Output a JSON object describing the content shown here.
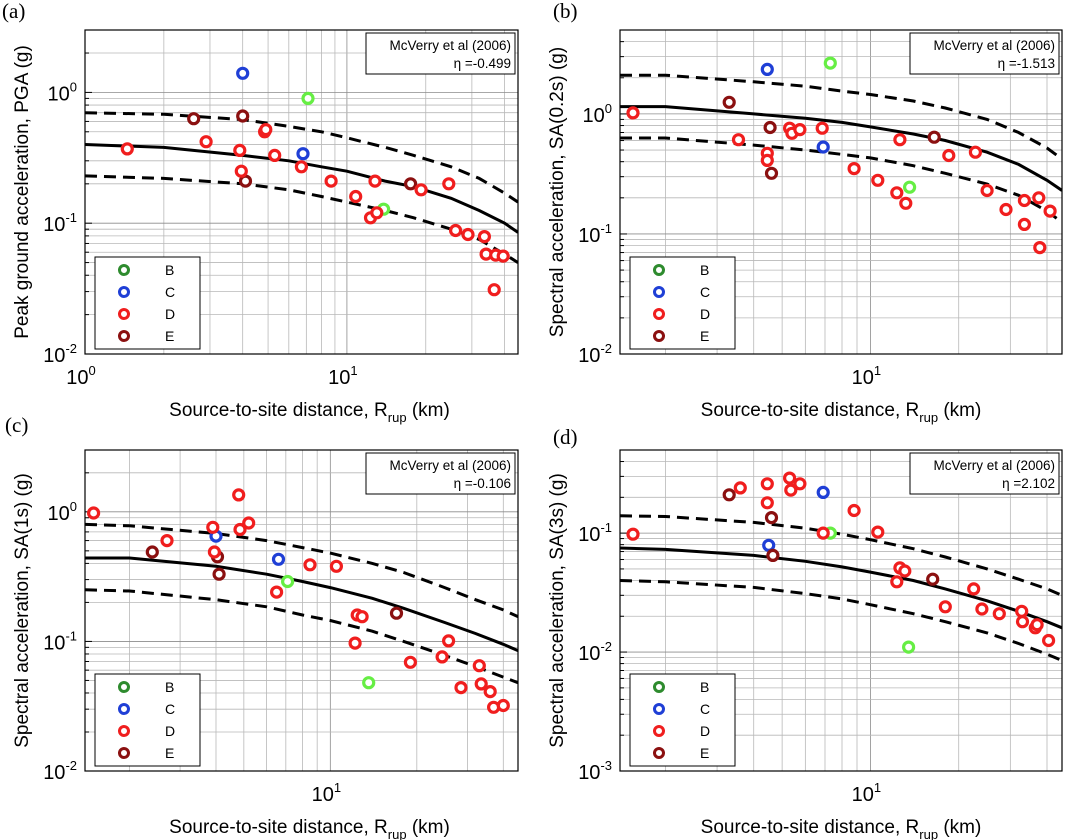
{
  "page_title": "",
  "legend_categories": [
    {
      "label": "B",
      "color": "#2e8b2e"
    },
    {
      "label": "C",
      "color": "#1f3fd6"
    },
    {
      "label": "D",
      "color": "#f01e1e"
    },
    {
      "label": "E",
      "color": "#8b1010"
    }
  ],
  "colors": {
    "light_green": "#66ee44",
    "median_line": "#000000",
    "bounds_line": "#000000"
  },
  "chart_data": [
    {
      "type": "scatter",
      "panel_label": "(a)",
      "annotation_model": "McVerry et al (2006)",
      "annotation_eta": "η =-0.499",
      "xlabel_main": "Source-to-site distance, R",
      "xlabel_sub": "rup",
      "xlabel_unit": " (km)",
      "ylabel": "Peak ground acceleration, PGA (g)",
      "xscale": "log",
      "yscale": "log",
      "xlim": [
        1,
        45
      ],
      "ylim": [
        0.01,
        3
      ],
      "xtick_labels": [
        {
          "v": 1,
          "base": "10",
          "exp": "0"
        },
        {
          "v": 10,
          "base": "10",
          "exp": "1"
        }
      ],
      "ytick_labels": [
        {
          "v": 0.01,
          "base": "10",
          "exp": "-2"
        },
        {
          "v": 0.1,
          "base": "10",
          "exp": "-1"
        },
        {
          "v": 1,
          "base": "10",
          "exp": "0"
        }
      ],
      "grid": true,
      "legend_position": "bottom-left",
      "median_curve": {
        "x": [
          1,
          2,
          4,
          6,
          8,
          10,
          14,
          18,
          25,
          32,
          40,
          45
        ],
        "y": [
          0.4,
          0.38,
          0.33,
          0.3,
          0.27,
          0.25,
          0.21,
          0.19,
          0.155,
          0.125,
          0.1,
          0.085
        ]
      },
      "upper_curve": {
        "x": [
          1,
          2,
          4,
          6,
          8,
          10,
          14,
          18,
          25,
          32,
          40,
          45
        ],
        "y": [
          0.7,
          0.68,
          0.62,
          0.55,
          0.5,
          0.45,
          0.38,
          0.33,
          0.27,
          0.22,
          0.17,
          0.145
        ]
      },
      "lower_curve": {
        "x": [
          1,
          2,
          4,
          6,
          8,
          10,
          14,
          18,
          25,
          32,
          40,
          45
        ],
        "y": [
          0.23,
          0.22,
          0.2,
          0.18,
          0.16,
          0.145,
          0.125,
          0.11,
          0.09,
          0.075,
          0.058,
          0.05
        ]
      },
      "points": [
        {
          "x": 4.0,
          "y": 1.4,
          "cls": "C"
        },
        {
          "x": 6.8,
          "y": 0.34,
          "cls": "C"
        },
        {
          "x": 7.1,
          "y": 0.9,
          "cls": "Bl"
        },
        {
          "x": 13.8,
          "y": 0.128,
          "cls": "Bl"
        },
        {
          "x": 2.6,
          "y": 0.63,
          "cls": "E"
        },
        {
          "x": 4.0,
          "y": 0.66,
          "cls": "E"
        },
        {
          "x": 4.1,
          "y": 0.21,
          "cls": "E"
        },
        {
          "x": 17.5,
          "y": 0.2,
          "cls": "E"
        },
        {
          "x": 1.45,
          "y": 0.37,
          "cls": "D"
        },
        {
          "x": 2.9,
          "y": 0.42,
          "cls": "D"
        },
        {
          "x": 3.9,
          "y": 0.36,
          "cls": "D"
        },
        {
          "x": 3.95,
          "y": 0.25,
          "cls": "D"
        },
        {
          "x": 4.85,
          "y": 0.5,
          "cls": "D"
        },
        {
          "x": 4.9,
          "y": 0.52,
          "cls": "D"
        },
        {
          "x": 5.3,
          "y": 0.33,
          "cls": "D"
        },
        {
          "x": 6.7,
          "y": 0.27,
          "cls": "D"
        },
        {
          "x": 8.7,
          "y": 0.21,
          "cls": "D"
        },
        {
          "x": 10.8,
          "y": 0.16,
          "cls": "D"
        },
        {
          "x": 12.3,
          "y": 0.11,
          "cls": "D"
        },
        {
          "x": 12.8,
          "y": 0.21,
          "cls": "D"
        },
        {
          "x": 13.0,
          "y": 0.12,
          "cls": "D"
        },
        {
          "x": 19.2,
          "y": 0.18,
          "cls": "D"
        },
        {
          "x": 24.5,
          "y": 0.2,
          "cls": "D"
        },
        {
          "x": 26.0,
          "y": 0.088,
          "cls": "D"
        },
        {
          "x": 29.0,
          "y": 0.082,
          "cls": "D"
        },
        {
          "x": 33.5,
          "y": 0.079,
          "cls": "D"
        },
        {
          "x": 34.0,
          "y": 0.058,
          "cls": "D"
        },
        {
          "x": 37.0,
          "y": 0.057,
          "cls": "D"
        },
        {
          "x": 39.5,
          "y": 0.056,
          "cls": "D"
        },
        {
          "x": 36.5,
          "y": 0.031,
          "cls": "D"
        }
      ]
    },
    {
      "type": "scatter",
      "panel_label": "(b)",
      "annotation_model": "McVerry et al (2006)",
      "annotation_eta": "η =-1.513",
      "xlabel_main": "Source-to-site distance, R",
      "xlabel_sub": "rup",
      "xlabel_unit": " (km)",
      "ylabel": "Spectral acceleration, SA(0.2s) (g)",
      "xscale": "log",
      "yscale": "log",
      "xlim": [
        1.4,
        45
      ],
      "ylim": [
        0.01,
        5
      ],
      "xtick_labels": [
        {
          "v": 10,
          "base": "10",
          "exp": "1"
        }
      ],
      "ytick_labels": [
        {
          "v": 0.01,
          "base": "10",
          "exp": "-2"
        },
        {
          "v": 0.1,
          "base": "10",
          "exp": "-1"
        },
        {
          "v": 1,
          "base": "10",
          "exp": "0"
        }
      ],
      "grid": true,
      "legend_position": "bottom-left",
      "median_curve": {
        "x": [
          1.4,
          2,
          4,
          6,
          8,
          10,
          14,
          18,
          25,
          32,
          40,
          45
        ],
        "y": [
          1.15,
          1.15,
          1.0,
          0.92,
          0.85,
          0.78,
          0.68,
          0.6,
          0.48,
          0.38,
          0.28,
          0.23
        ]
      },
      "upper_curve": {
        "x": [
          1.4,
          2,
          4,
          6,
          8,
          10,
          14,
          18,
          25,
          32,
          40,
          45
        ],
        "y": [
          2.1,
          2.1,
          1.85,
          1.7,
          1.55,
          1.45,
          1.28,
          1.12,
          0.9,
          0.7,
          0.52,
          0.42
        ]
      },
      "lower_curve": {
        "x": [
          1.4,
          2,
          4,
          6,
          8,
          10,
          14,
          18,
          25,
          32,
          40,
          45
        ],
        "y": [
          0.63,
          0.63,
          0.55,
          0.5,
          0.46,
          0.43,
          0.37,
          0.32,
          0.26,
          0.21,
          0.155,
          0.125
        ]
      },
      "points": [
        {
          "x": 4.45,
          "y": 2.35,
          "cls": "C"
        },
        {
          "x": 6.9,
          "y": 0.53,
          "cls": "C"
        },
        {
          "x": 7.3,
          "y": 2.65,
          "cls": "Bl"
        },
        {
          "x": 13.6,
          "y": 0.245,
          "cls": "Bl"
        },
        {
          "x": 3.3,
          "y": 1.25,
          "cls": "E"
        },
        {
          "x": 4.55,
          "y": 0.77,
          "cls": "E"
        },
        {
          "x": 4.6,
          "y": 0.32,
          "cls": "E"
        },
        {
          "x": 16.5,
          "y": 0.64,
          "cls": "E"
        },
        {
          "x": 1.55,
          "y": 1.02,
          "cls": "D"
        },
        {
          "x": 3.55,
          "y": 0.61,
          "cls": "D"
        },
        {
          "x": 4.45,
          "y": 0.47,
          "cls": "D"
        },
        {
          "x": 4.45,
          "y": 0.41,
          "cls": "D"
        },
        {
          "x": 5.3,
          "y": 0.76,
          "cls": "D"
        },
        {
          "x": 5.4,
          "y": 0.69,
          "cls": "D"
        },
        {
          "x": 5.75,
          "y": 0.74,
          "cls": "D"
        },
        {
          "x": 6.85,
          "y": 0.76,
          "cls": "D"
        },
        {
          "x": 8.8,
          "y": 0.35,
          "cls": "D"
        },
        {
          "x": 10.6,
          "y": 0.28,
          "cls": "D"
        },
        {
          "x": 12.3,
          "y": 0.22,
          "cls": "D"
        },
        {
          "x": 12.6,
          "y": 0.61,
          "cls": "D"
        },
        {
          "x": 13.2,
          "y": 0.18,
          "cls": "D"
        },
        {
          "x": 18.5,
          "y": 0.45,
          "cls": "D"
        },
        {
          "x": 22.8,
          "y": 0.48,
          "cls": "D"
        },
        {
          "x": 25.0,
          "y": 0.23,
          "cls": "D"
        },
        {
          "x": 29.0,
          "y": 0.16,
          "cls": "D"
        },
        {
          "x": 33.5,
          "y": 0.19,
          "cls": "D"
        },
        {
          "x": 33.5,
          "y": 0.12,
          "cls": "D"
        },
        {
          "x": 37.5,
          "y": 0.2,
          "cls": "D"
        },
        {
          "x": 41.0,
          "y": 0.155,
          "cls": "D"
        },
        {
          "x": 37.8,
          "y": 0.077,
          "cls": "D"
        }
      ]
    },
    {
      "type": "scatter",
      "panel_label": "(c)",
      "annotation_model": "McVerry et al (2006)",
      "annotation_eta": "η =-0.106",
      "xlabel_main": "Source-to-site distance, R",
      "xlabel_sub": "rup",
      "xlabel_unit": " (km)",
      "ylabel": "Spectral acceleration, SA(1s) (g)",
      "xscale": "log",
      "yscale": "log",
      "xlim": [
        1.4,
        45
      ],
      "ylim": [
        0.01,
        3
      ],
      "xtick_labels": [
        {
          "v": 10,
          "base": "10",
          "exp": "1"
        }
      ],
      "ytick_labels": [
        {
          "v": 0.01,
          "base": "10",
          "exp": "-2"
        },
        {
          "v": 0.1,
          "base": "10",
          "exp": "-1"
        },
        {
          "v": 1,
          "base": "10",
          "exp": "0"
        }
      ],
      "grid": true,
      "legend_position": "bottom-left",
      "median_curve": {
        "x": [
          1.4,
          2,
          4,
          6,
          8,
          10,
          14,
          18,
          25,
          32,
          40,
          45
        ],
        "y": [
          0.44,
          0.44,
          0.38,
          0.33,
          0.29,
          0.26,
          0.215,
          0.18,
          0.14,
          0.115,
          0.095,
          0.085
        ]
      },
      "upper_curve": {
        "x": [
          1.4,
          2,
          4,
          6,
          8,
          10,
          14,
          18,
          25,
          32,
          40,
          45
        ],
        "y": [
          0.8,
          0.78,
          0.68,
          0.6,
          0.53,
          0.48,
          0.4,
          0.34,
          0.26,
          0.21,
          0.175,
          0.155
        ]
      },
      "lower_curve": {
        "x": [
          1.4,
          2,
          4,
          6,
          8,
          10,
          14,
          18,
          25,
          32,
          40,
          45
        ],
        "y": [
          0.25,
          0.245,
          0.21,
          0.185,
          0.16,
          0.145,
          0.12,
          0.1,
          0.078,
          0.064,
          0.053,
          0.048
        ]
      },
      "points": [
        {
          "x": 4.0,
          "y": 0.65,
          "cls": "C"
        },
        {
          "x": 6.6,
          "y": 0.43,
          "cls": "C"
        },
        {
          "x": 7.1,
          "y": 0.29,
          "cls": "Bl"
        },
        {
          "x": 13.6,
          "y": 0.048,
          "cls": "Bl"
        },
        {
          "x": 2.4,
          "y": 0.49,
          "cls": "E"
        },
        {
          "x": 4.05,
          "y": 0.45,
          "cls": "E"
        },
        {
          "x": 4.1,
          "y": 0.33,
          "cls": "E"
        },
        {
          "x": 17.0,
          "y": 0.165,
          "cls": "E"
        },
        {
          "x": 1.5,
          "y": 0.98,
          "cls": "D"
        },
        {
          "x": 2.7,
          "y": 0.6,
          "cls": "D"
        },
        {
          "x": 3.9,
          "y": 0.76,
          "cls": "D"
        },
        {
          "x": 3.95,
          "y": 0.49,
          "cls": "D"
        },
        {
          "x": 4.8,
          "y": 1.35,
          "cls": "D"
        },
        {
          "x": 4.85,
          "y": 0.73,
          "cls": "D"
        },
        {
          "x": 5.2,
          "y": 0.82,
          "cls": "D"
        },
        {
          "x": 6.5,
          "y": 0.24,
          "cls": "D"
        },
        {
          "x": 8.5,
          "y": 0.39,
          "cls": "D"
        },
        {
          "x": 10.5,
          "y": 0.38,
          "cls": "D"
        },
        {
          "x": 12.2,
          "y": 0.097,
          "cls": "D"
        },
        {
          "x": 12.4,
          "y": 0.16,
          "cls": "D"
        },
        {
          "x": 12.9,
          "y": 0.155,
          "cls": "D"
        },
        {
          "x": 19.0,
          "y": 0.069,
          "cls": "D"
        },
        {
          "x": 24.5,
          "y": 0.076,
          "cls": "D"
        },
        {
          "x": 25.8,
          "y": 0.101,
          "cls": "D"
        },
        {
          "x": 28.5,
          "y": 0.044,
          "cls": "D"
        },
        {
          "x": 33.0,
          "y": 0.065,
          "cls": "D"
        },
        {
          "x": 33.5,
          "y": 0.047,
          "cls": "D"
        },
        {
          "x": 36.0,
          "y": 0.041,
          "cls": "D"
        },
        {
          "x": 37.0,
          "y": 0.031,
          "cls": "D"
        },
        {
          "x": 40.0,
          "y": 0.032,
          "cls": "D"
        }
      ]
    },
    {
      "type": "scatter",
      "panel_label": "(d)",
      "annotation_model": "McVerry et al (2006)",
      "annotation_eta": "η =2.102",
      "xlabel_main": "Source-to-site distance, R",
      "xlabel_sub": "rup",
      "xlabel_unit": " (km)",
      "ylabel": "Spectral acceleration, SA(3s) (g)",
      "xscale": "log",
      "yscale": "log",
      "xlim": [
        1.4,
        45
      ],
      "ylim": [
        0.001,
        0.5
      ],
      "xtick_labels": [
        {
          "v": 10,
          "base": "10",
          "exp": "1"
        }
      ],
      "ytick_labels": [
        {
          "v": 0.001,
          "base": "10",
          "exp": "-3"
        },
        {
          "v": 0.01,
          "base": "10",
          "exp": "-2"
        },
        {
          "v": 0.1,
          "base": "10",
          "exp": "-1"
        }
      ],
      "grid": true,
      "legend_position": "bottom-left",
      "median_curve": {
        "x": [
          1.4,
          2,
          4,
          6,
          8,
          10,
          14,
          18,
          25,
          32,
          40,
          45
        ],
        "y": [
          0.075,
          0.073,
          0.065,
          0.058,
          0.052,
          0.047,
          0.04,
          0.034,
          0.027,
          0.022,
          0.018,
          0.016
        ]
      },
      "upper_curve": {
        "x": [
          1.4,
          2,
          4,
          6,
          8,
          10,
          14,
          18,
          25,
          32,
          40,
          45
        ],
        "y": [
          0.14,
          0.138,
          0.123,
          0.11,
          0.098,
          0.088,
          0.074,
          0.063,
          0.05,
          0.041,
          0.034,
          0.03
        ]
      },
      "lower_curve": {
        "x": [
          1.4,
          2,
          4,
          6,
          8,
          10,
          14,
          18,
          25,
          32,
          40,
          45
        ],
        "y": [
          0.04,
          0.039,
          0.035,
          0.031,
          0.028,
          0.025,
          0.021,
          0.018,
          0.0145,
          0.0118,
          0.0096,
          0.0085
        ]
      },
      "points": [
        {
          "x": 4.5,
          "y": 0.079,
          "cls": "C"
        },
        {
          "x": 6.9,
          "y": 0.22,
          "cls": "C"
        },
        {
          "x": 7.3,
          "y": 0.1,
          "cls": "Bl"
        },
        {
          "x": 13.5,
          "y": 0.011,
          "cls": "Bl"
        },
        {
          "x": 3.3,
          "y": 0.21,
          "cls": "E"
        },
        {
          "x": 4.6,
          "y": 0.135,
          "cls": "E"
        },
        {
          "x": 4.65,
          "y": 0.065,
          "cls": "E"
        },
        {
          "x": 16.3,
          "y": 0.041,
          "cls": "E"
        },
        {
          "x": 1.55,
          "y": 0.098,
          "cls": "D"
        },
        {
          "x": 3.6,
          "y": 0.24,
          "cls": "D"
        },
        {
          "x": 4.45,
          "y": 0.26,
          "cls": "D"
        },
        {
          "x": 4.45,
          "y": 0.18,
          "cls": "D"
        },
        {
          "x": 5.3,
          "y": 0.29,
          "cls": "D"
        },
        {
          "x": 5.35,
          "y": 0.23,
          "cls": "D"
        },
        {
          "x": 5.75,
          "y": 0.26,
          "cls": "D"
        },
        {
          "x": 6.9,
          "y": 0.1,
          "cls": "D"
        },
        {
          "x": 8.8,
          "y": 0.155,
          "cls": "D"
        },
        {
          "x": 10.6,
          "y": 0.102,
          "cls": "D"
        },
        {
          "x": 12.3,
          "y": 0.039,
          "cls": "D"
        },
        {
          "x": 12.6,
          "y": 0.051,
          "cls": "D"
        },
        {
          "x": 13.1,
          "y": 0.048,
          "cls": "D"
        },
        {
          "x": 18.0,
          "y": 0.024,
          "cls": "D"
        },
        {
          "x": 22.5,
          "y": 0.034,
          "cls": "D"
        },
        {
          "x": 24.0,
          "y": 0.023,
          "cls": "D"
        },
        {
          "x": 27.5,
          "y": 0.021,
          "cls": "D"
        },
        {
          "x": 32.8,
          "y": 0.022,
          "cls": "D"
        },
        {
          "x": 33.0,
          "y": 0.018,
          "cls": "D"
        },
        {
          "x": 36.5,
          "y": 0.016,
          "cls": "D"
        },
        {
          "x": 37.0,
          "y": 0.017,
          "cls": "D"
        },
        {
          "x": 40.5,
          "y": 0.0125,
          "cls": "D"
        }
      ]
    }
  ]
}
